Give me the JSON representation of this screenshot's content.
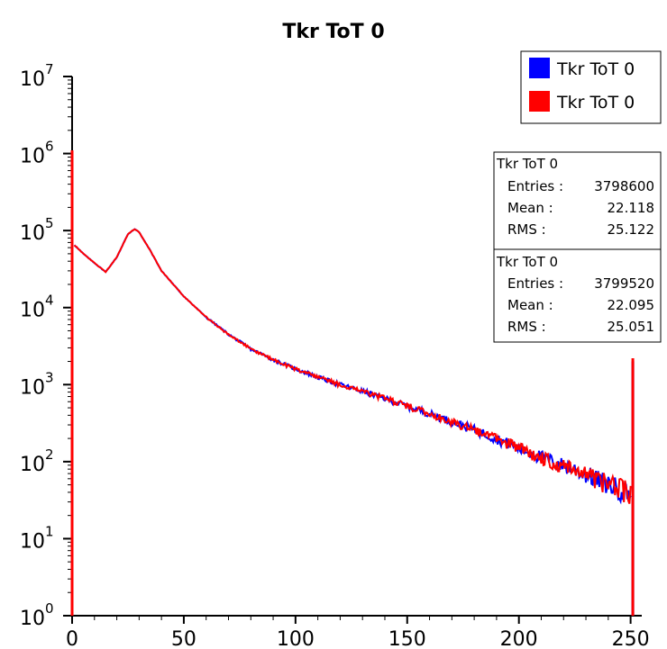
{
  "chart_data": {
    "type": "histogram",
    "title": "Tkr ToT 0",
    "xlabel": "",
    "ylabel": "",
    "xlim": [
      0,
      255
    ],
    "ylim": [
      1,
      10000000
    ],
    "y_scale": "log",
    "x_ticks": [
      "0",
      "50",
      "100",
      "150",
      "200",
      "250"
    ],
    "x_tick_values": [
      0,
      50,
      100,
      150,
      200,
      250
    ],
    "y_tick_base": "10",
    "y_tick_exponents": [
      "0",
      "1",
      "2",
      "3",
      "4",
      "5",
      "6",
      "7"
    ],
    "legend": {
      "placement": "top-right",
      "entries": [
        {
          "label": "Tkr ToT 0",
          "color": "#0000ff"
        },
        {
          "label": "Tkr ToT 0",
          "color": "#ff0000"
        }
      ]
    },
    "stats_boxes": [
      {
        "title": "Tkr ToT 0",
        "rows": [
          {
            "label": "Entries :",
            "value": "3798600"
          },
          {
            "label": "Mean :",
            "value": "22.118"
          },
          {
            "label": "RMS :",
            "value": "25.122"
          }
        ]
      },
      {
        "title": "Tkr ToT 0",
        "rows": [
          {
            "label": "Entries :",
            "value": "3799520"
          },
          {
            "label": "Mean :",
            "value": "22.095"
          },
          {
            "label": "RMS :",
            "value": "25.051"
          }
        ]
      }
    ],
    "series": [
      {
        "color": "#0000ff",
        "spike_bins": [
          {
            "x": 0,
            "y": 1100000
          },
          {
            "x": 251,
            "y": 2000
          }
        ],
        "x": [
          1,
          5,
          10,
          15,
          20,
          25,
          28,
          30,
          35,
          40,
          50,
          60,
          70,
          80,
          90,
          100,
          110,
          120,
          130,
          140,
          150,
          160,
          170,
          180,
          190,
          200,
          210,
          220,
          230,
          240,
          250
        ],
        "y": [
          65000,
          50000,
          38000,
          29000,
          45000,
          90000,
          105000,
          95000,
          55000,
          30000,
          14000,
          7500,
          4500,
          2900,
          2100,
          1600,
          1250,
          1000,
          820,
          660,
          530,
          420,
          330,
          260,
          200,
          150,
          115,
          90,
          70,
          52,
          40
        ]
      },
      {
        "color": "#ff0000",
        "spike_bins": [
          {
            "x": 0,
            "y": 1100000
          },
          {
            "x": 251,
            "y": 2200
          }
        ],
        "x": [
          1,
          5,
          10,
          15,
          20,
          25,
          28,
          30,
          35,
          40,
          50,
          60,
          70,
          80,
          90,
          100,
          110,
          120,
          130,
          140,
          150,
          160,
          170,
          180,
          190,
          200,
          210,
          220,
          230,
          240,
          250
        ],
        "y": [
          65000,
          50000,
          38000,
          29000,
          45000,
          90000,
          105000,
          95000,
          55000,
          30000,
          14000,
          7500,
          4500,
          2900,
          2100,
          1600,
          1250,
          1000,
          820,
          660,
          530,
          420,
          330,
          260,
          200,
          150,
          115,
          90,
          70,
          52,
          40
        ]
      }
    ]
  }
}
